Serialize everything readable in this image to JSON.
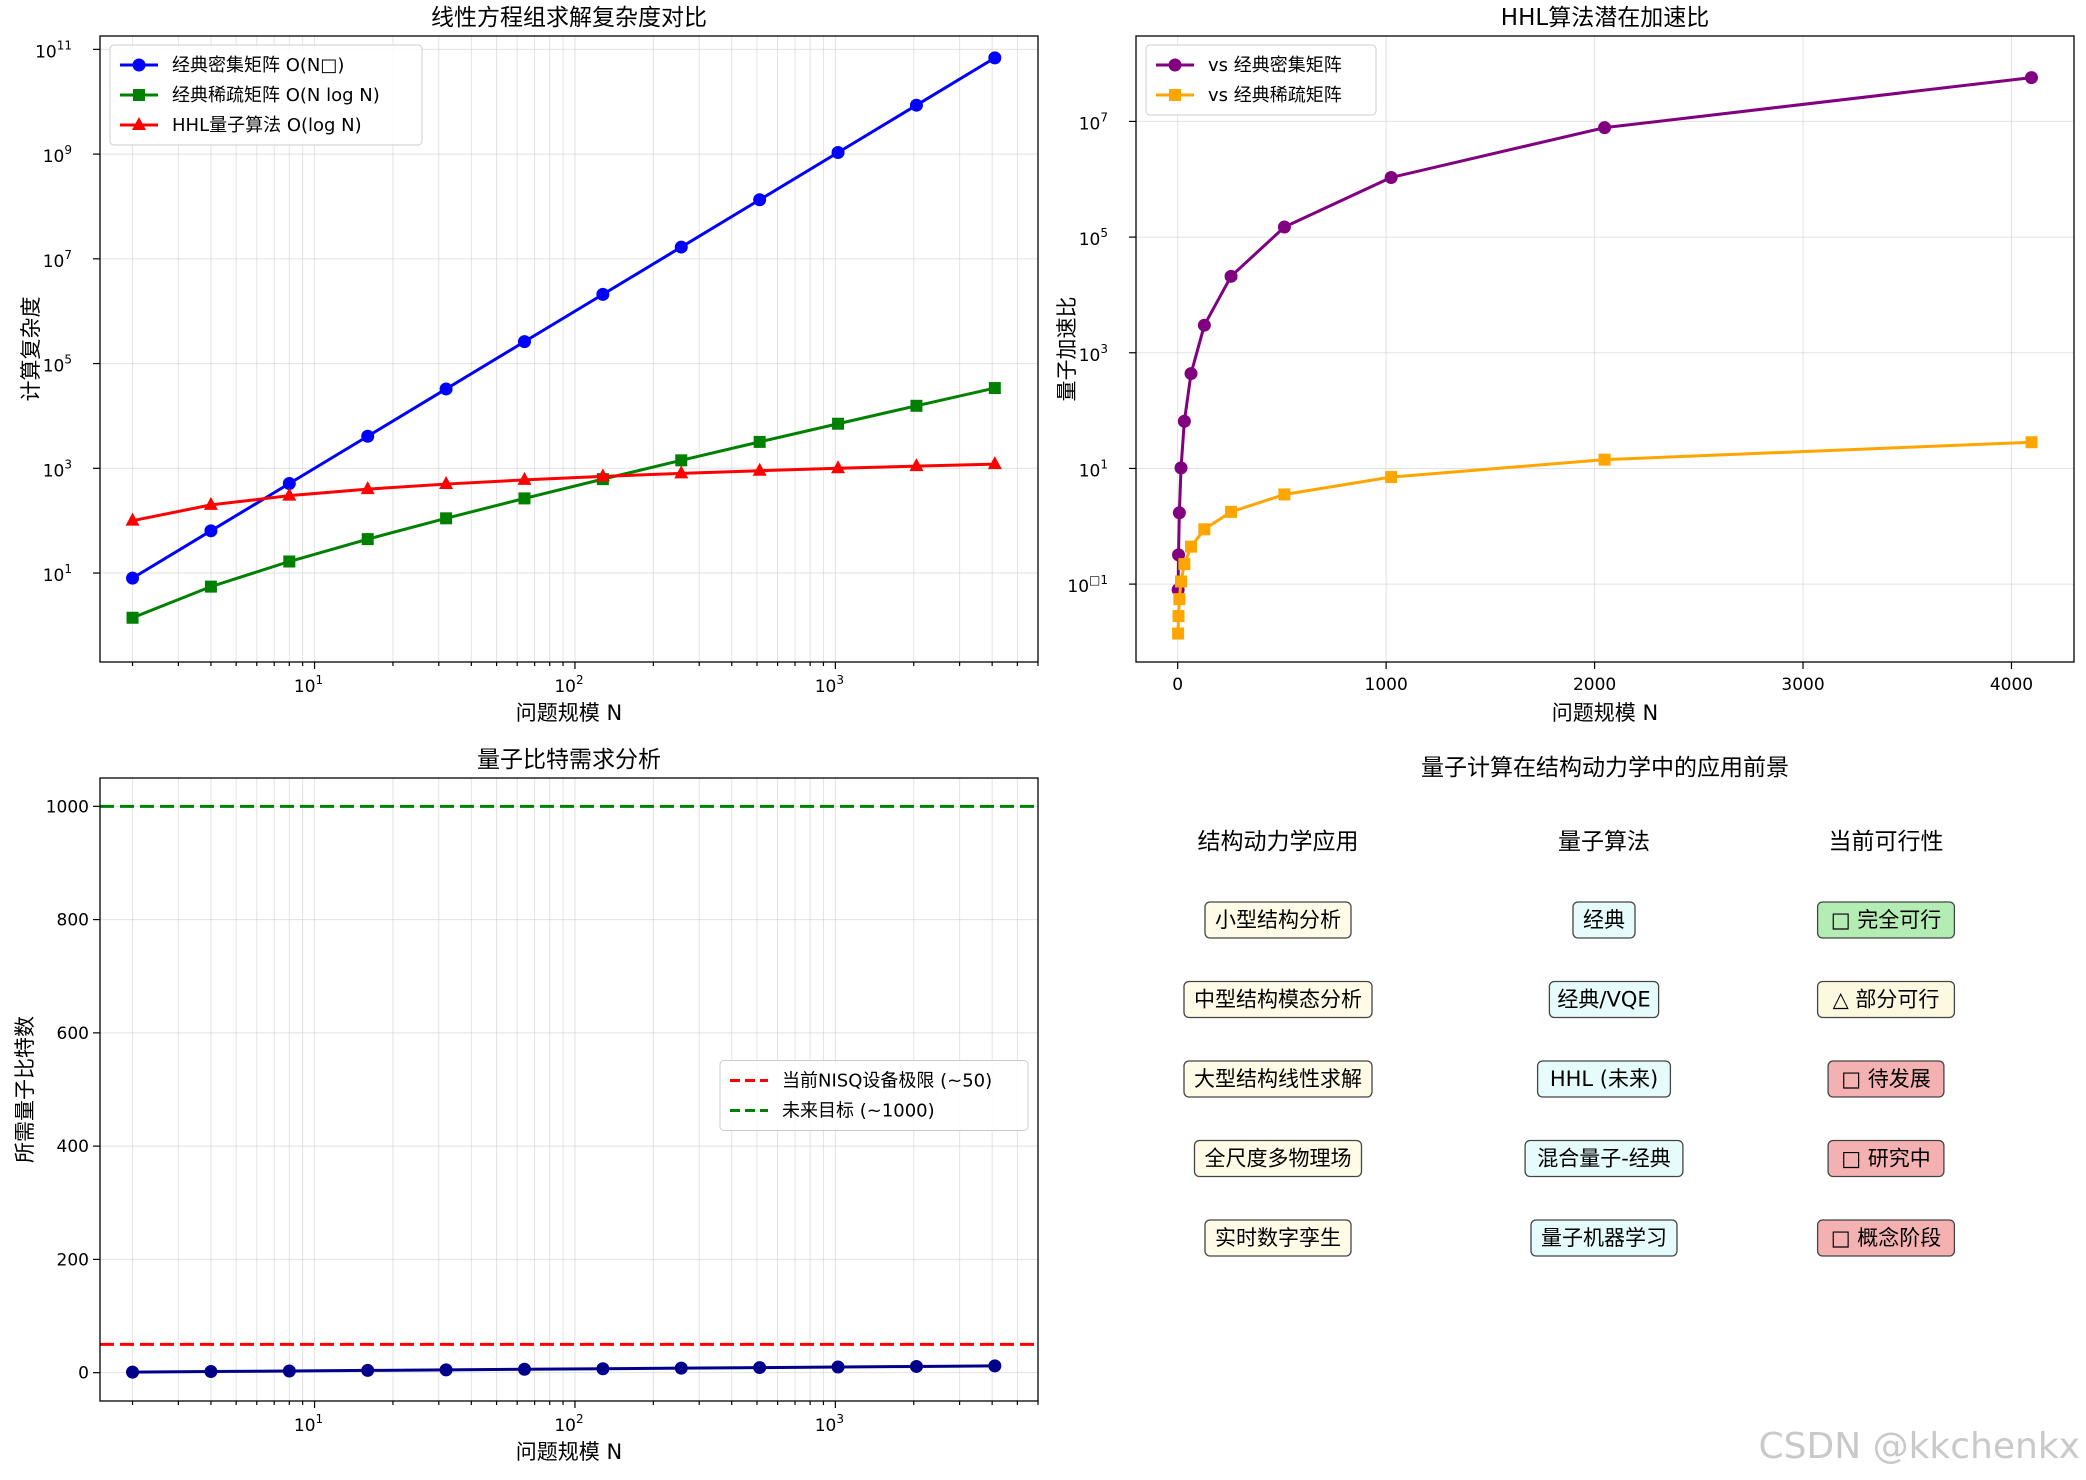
{
  "figure": {
    "watermark": "CSDN @kkchenkx"
  },
  "chart_data": [
    {
      "type": "line",
      "title": "线性方程组求解复杂度对比",
      "xlabel": "问题规模 N",
      "ylabel": "计算复杂度",
      "xscale": "log",
      "yscale": "log",
      "xlim": [
        1.5,
        6000
      ],
      "ylim": [
        0.2,
        180000000000
      ],
      "grid": true,
      "legend": "top-left",
      "x": [
        2,
        4,
        8,
        16,
        32,
        64,
        128,
        256,
        512,
        1024,
        2048,
        4096
      ],
      "x_ticks": [
        10,
        100,
        1000
      ],
      "x_tick_labels": [
        [
          "10",
          "1"
        ],
        [
          "10",
          "2"
        ],
        [
          "10",
          "3"
        ]
      ],
      "y_ticks": [
        10,
        1000,
        100000,
        10000000,
        1000000000,
        100000000000
      ],
      "y_tick_labels": [
        [
          "10",
          "1"
        ],
        [
          "10",
          "3"
        ],
        [
          "10",
          "5"
        ],
        [
          "10",
          "7"
        ],
        [
          "10",
          "9"
        ],
        [
          "10",
          "11"
        ]
      ],
      "series": [
        {
          "name": "经典密集矩阵 O(N□)",
          "color": "#0000ff",
          "marker": "circle",
          "values": [
            8,
            64,
            512,
            4096,
            32768,
            262144,
            2097152,
            16777216,
            134217728,
            1073741824,
            8589934592,
            68719476736
          ]
        },
        {
          "name": "经典稀疏矩阵 O(N log N)",
          "color": "#008000",
          "marker": "square",
          "values": [
            1.4,
            5.5,
            16.6,
            44.4,
            110.9,
            266.2,
            621.0,
            1419.4,
            3193.7,
            7097.1,
            15614,
            34063
          ]
        },
        {
          "name": "HHL量子算法 O(log N)",
          "color": "#ff0000",
          "marker": "triangle",
          "values": [
            100,
            200,
            300,
            400,
            500,
            600,
            700,
            800,
            900,
            1000,
            1100,
            1200
          ]
        }
      ]
    },
    {
      "type": "line",
      "title": "HHL算法潜在加速比",
      "xlabel": "问题规模 N",
      "ylabel": "量子加速比",
      "xscale": "linear",
      "yscale": "log",
      "xlim": [
        -200,
        4300
      ],
      "ylim": [
        0.0045,
        300000000
      ],
      "grid": true,
      "legend": "top-left",
      "x": [
        2,
        4,
        8,
        16,
        32,
        64,
        128,
        256,
        512,
        1024,
        2048,
        4096
      ],
      "x_ticks": [
        0,
        1000,
        2000,
        3000,
        4000
      ],
      "x_tick_labels": [
        "0",
        "1000",
        "2000",
        "3000",
        "4000"
      ],
      "y_ticks": [
        0.1,
        10,
        1000,
        100000,
        10000000
      ],
      "y_tick_labels": [
        [
          "10",
          "□1"
        ],
        [
          "10",
          "1"
        ],
        [
          "10",
          "3"
        ],
        [
          "10",
          "5"
        ],
        [
          "10",
          "7"
        ]
      ],
      "series": [
        {
          "name": "vs 经典密集矩阵",
          "color": "#800080",
          "marker": "circle",
          "values": [
            0.08,
            0.32,
            1.71,
            10.24,
            65.5,
            436.9,
            2995.9,
            20971.5,
            149130,
            1073742,
            7808941,
            57266231
          ]
        },
        {
          "name": "vs 经典稀疏矩阵",
          "color": "#ffa500",
          "marker": "square",
          "values": [
            0.014,
            0.028,
            0.055,
            0.111,
            0.222,
            0.444,
            0.887,
            1.774,
            3.549,
            7.097,
            14.195,
            28.386
          ]
        }
      ]
    },
    {
      "type": "line",
      "title": "量子比特需求分析",
      "xlabel": "问题规模 N",
      "ylabel": "所需量子比特数",
      "xscale": "log",
      "yscale": "linear",
      "xlim": [
        1.5,
        6000
      ],
      "ylim": [
        -50,
        1050
      ],
      "grid": true,
      "legend": "center-right",
      "x": [
        2,
        4,
        8,
        16,
        32,
        64,
        128,
        256,
        512,
        1024,
        2048,
        4096
      ],
      "x_ticks": [
        10,
        100,
        1000
      ],
      "x_tick_labels": [
        [
          "10",
          "1"
        ],
        [
          "10",
          "2"
        ],
        [
          "10",
          "3"
        ]
      ],
      "y_ticks": [
        0,
        200,
        400,
        600,
        800,
        1000
      ],
      "y_tick_labels": [
        "0",
        "200",
        "400",
        "600",
        "800",
        "1000"
      ],
      "series": [
        {
          "name": "",
          "color": "#00008b",
          "marker": "circle",
          "values": [
            1,
            2,
            3,
            4,
            5,
            6,
            7,
            8,
            9,
            10,
            11,
            12
          ]
        }
      ],
      "hlines": [
        {
          "name": "当前NISQ设备极限 (~50)",
          "value": 50,
          "color": "#ff0000",
          "style": "dashed"
        },
        {
          "name": "未来目标 (~1000)",
          "value": 1000,
          "color": "#008000",
          "style": "dashed"
        }
      ]
    },
    {
      "type": "table",
      "title": "量子计算在结构动力学中的应用前景",
      "columns": [
        "结构动力学应用",
        "量子算法",
        "当前可行性"
      ],
      "rows": [
        [
          "小型结构分析",
          "经典",
          "□ 完全可行"
        ],
        [
          "中型结构模态分析",
          "经典/VQE",
          "△ 部分可行"
        ],
        [
          "大型结构线性求解",
          "HHL (未来)",
          "□ 待发展"
        ],
        [
          "全尺度多物理场",
          "混合量子-经典",
          "□ 研究中"
        ],
        [
          "实时数字孪生",
          "量子机器学习",
          "□ 概念阶段"
        ]
      ],
      "column_colors": [
        "#fffbe6",
        "#e6fbfb",
        null
      ],
      "status_colors": [
        "#b4edb4",
        "#fdf9e0",
        "#f4b1b1",
        "#f4b1b1",
        "#f4b1b1"
      ]
    }
  ]
}
